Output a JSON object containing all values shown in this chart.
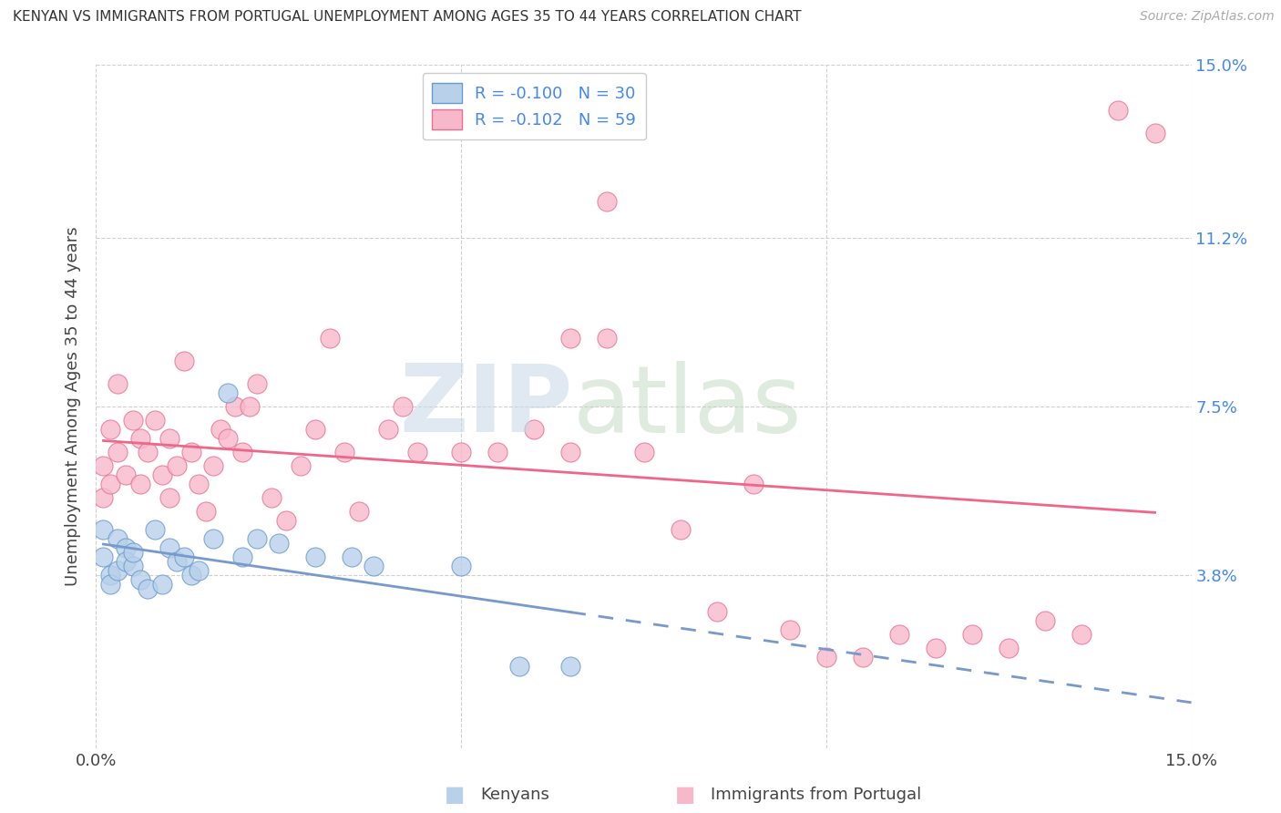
{
  "title": "KENYAN VS IMMIGRANTS FROM PORTUGAL UNEMPLOYMENT AMONG AGES 35 TO 44 YEARS CORRELATION CHART",
  "source": "Source: ZipAtlas.com",
  "ylabel": "Unemployment Among Ages 35 to 44 years",
  "xlim": [
    0.0,
    0.15
  ],
  "ylim": [
    0.0,
    0.15
  ],
  "x_ticks": [
    0.0,
    0.05,
    0.1,
    0.15
  ],
  "x_tick_labels": [
    "0.0%",
    "",
    "",
    "15.0%"
  ],
  "y_ticks_right": [
    0.038,
    0.075,
    0.112,
    0.15
  ],
  "y_tick_labels_right": [
    "3.8%",
    "7.5%",
    "11.2%",
    "15.0%"
  ],
  "legend_r_kenyan": "-0.100",
  "legend_n_kenyan": "30",
  "legend_r_portugal": "-0.102",
  "legend_n_portugal": "59",
  "kenyan_fill_color": "#b8d0ea",
  "kenyan_edge_color": "#6699cc",
  "portugal_fill_color": "#f8b8cc",
  "portugal_edge_color": "#e87090",
  "kenyan_trend_color": "#7799cc",
  "portugal_trend_color": "#ee6688",
  "kenyan_x": [
    0.001,
    0.001,
    0.002,
    0.002,
    0.003,
    0.003,
    0.004,
    0.004,
    0.005,
    0.005,
    0.006,
    0.007,
    0.008,
    0.009,
    0.01,
    0.011,
    0.012,
    0.013,
    0.014,
    0.016,
    0.018,
    0.02,
    0.022,
    0.025,
    0.03,
    0.035,
    0.038,
    0.05,
    0.058,
    0.065
  ],
  "kenyan_y": [
    0.048,
    0.042,
    0.038,
    0.036,
    0.046,
    0.039,
    0.044,
    0.041,
    0.04,
    0.043,
    0.037,
    0.035,
    0.048,
    0.036,
    0.044,
    0.041,
    0.042,
    0.038,
    0.039,
    0.046,
    0.078,
    0.042,
    0.046,
    0.045,
    0.042,
    0.042,
    0.04,
    0.04,
    0.018,
    0.018
  ],
  "portugal_x": [
    0.001,
    0.001,
    0.002,
    0.002,
    0.003,
    0.003,
    0.004,
    0.005,
    0.006,
    0.006,
    0.007,
    0.008,
    0.009,
    0.01,
    0.01,
    0.011,
    0.012,
    0.013,
    0.014,
    0.015,
    0.016,
    0.017,
    0.018,
    0.019,
    0.02,
    0.021,
    0.022,
    0.024,
    0.026,
    0.028,
    0.03,
    0.032,
    0.034,
    0.036,
    0.04,
    0.042,
    0.044,
    0.05,
    0.055,
    0.06,
    0.065,
    0.07,
    0.075,
    0.08,
    0.085,
    0.09,
    0.095,
    0.1,
    0.105,
    0.11,
    0.115,
    0.12,
    0.125,
    0.13,
    0.135,
    0.14,
    0.145,
    0.065,
    0.07
  ],
  "portugal_y": [
    0.062,
    0.055,
    0.07,
    0.058,
    0.065,
    0.08,
    0.06,
    0.072,
    0.058,
    0.068,
    0.065,
    0.072,
    0.06,
    0.068,
    0.055,
    0.062,
    0.085,
    0.065,
    0.058,
    0.052,
    0.062,
    0.07,
    0.068,
    0.075,
    0.065,
    0.075,
    0.08,
    0.055,
    0.05,
    0.062,
    0.07,
    0.09,
    0.065,
    0.052,
    0.07,
    0.075,
    0.065,
    0.065,
    0.065,
    0.07,
    0.065,
    0.09,
    0.065,
    0.048,
    0.03,
    0.058,
    0.026,
    0.02,
    0.02,
    0.025,
    0.022,
    0.025,
    0.022,
    0.028,
    0.025,
    0.14,
    0.135,
    0.09,
    0.12
  ]
}
